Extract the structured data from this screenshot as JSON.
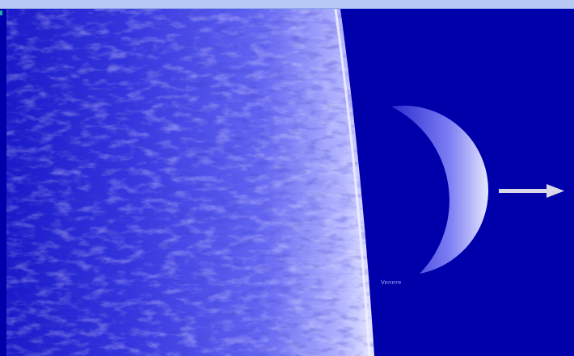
{
  "scene": {
    "planet_label": "Venere"
  },
  "icons": {
    "next": "arrow-right-icon"
  },
  "colors": {
    "space": "#0000aa",
    "surface_light": "#dcdcff",
    "surface_mid": "#6a6cf2",
    "surface_dark": "#2222cc",
    "topbar": "#b8c8f4",
    "arrow": "#d8d8e8"
  }
}
